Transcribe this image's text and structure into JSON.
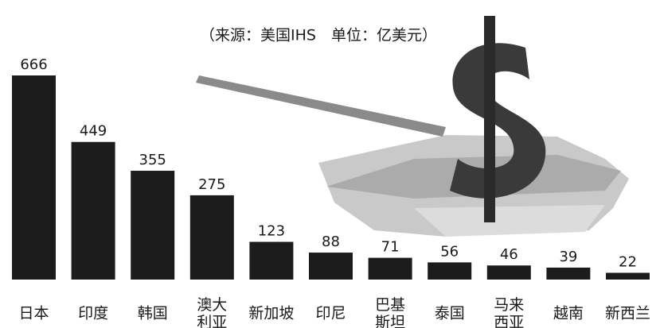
{
  "chart_data": {
    "type": "bar",
    "title": "（来源：美国IHS　单位：亿美元）",
    "categories": [
      "日本",
      "印度",
      "韩国",
      "澳大利亚",
      "新加坡",
      "印尼",
      "巴基斯坦",
      "泰国",
      "马来西亚",
      "越南",
      "新西兰"
    ],
    "values": [
      666,
      449,
      355,
      275,
      123,
      88,
      71,
      56,
      46,
      39,
      22
    ],
    "color": "#1c1c1c"
  }
}
